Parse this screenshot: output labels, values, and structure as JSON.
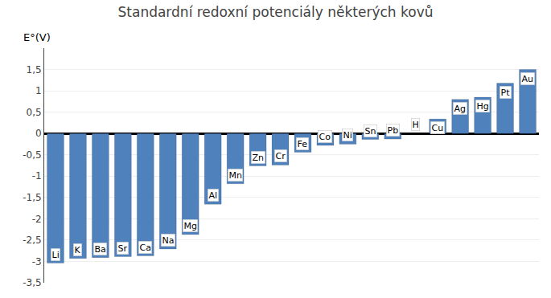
{
  "chart_data": {
    "type": "bar",
    "title": "Standardní redoxní potenciály některých kovů",
    "ylabel": "E°(V)",
    "categories": [
      "Li",
      "K",
      "Ba",
      "Sr",
      "Ca",
      "Na",
      "Mg",
      "Al",
      "Mn",
      "Zn",
      "Cr",
      "Fe",
      "Co",
      "Ni",
      "Sn",
      "Pb",
      "H",
      "Cu",
      "Ag",
      "Hg",
      "Pt",
      "Au"
    ],
    "values": [
      -3.04,
      -2.93,
      -2.91,
      -2.89,
      -2.87,
      -2.71,
      -2.37,
      -1.66,
      -1.18,
      -0.76,
      -0.74,
      -0.44,
      -0.28,
      -0.25,
      -0.14,
      -0.13,
      0.0,
      0.34,
      0.8,
      0.85,
      1.18,
      1.5
    ],
    "color": "#4F81BD",
    "ylim": [
      -3.5,
      2.0
    ],
    "yticks": [
      {
        "value": -3.5,
        "label": "-3,5"
      },
      -3,
      {
        "value": -2.5,
        "label": "-2,5"
      },
      -2,
      {
        "value": -1.5,
        "label": "-1,5"
      },
      -1,
      {
        "value": -0.5,
        "label": "-0,5"
      },
      0,
      {
        "value": 0.5,
        "label": "0,5"
      },
      1,
      {
        "value": 1.5,
        "label": "1,5"
      }
    ],
    "grid": true,
    "tick_labels": "y"
  }
}
